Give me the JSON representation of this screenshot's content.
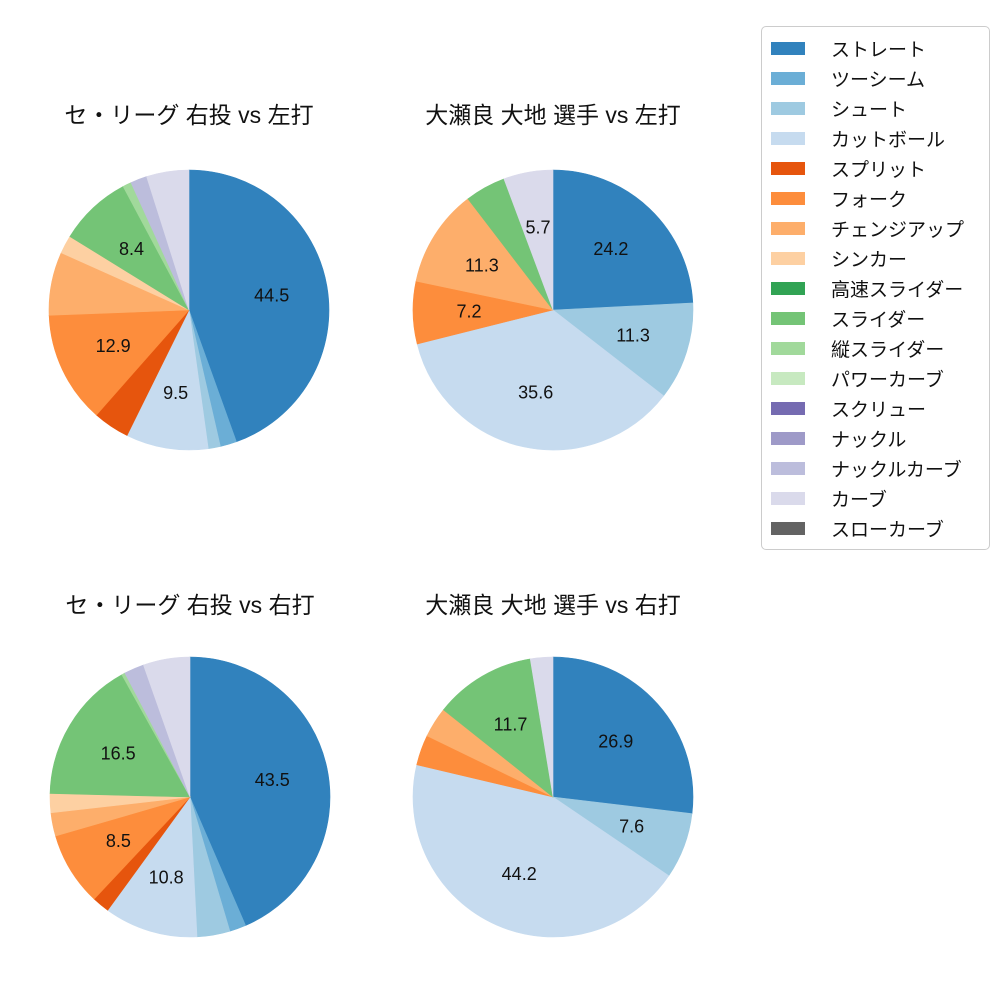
{
  "figure": {
    "background": "#ffffff"
  },
  "legend": {
    "position": "upper right",
    "border_color": "#cccccc",
    "items": [
      {
        "label": "ストレート",
        "color": "#3182bd"
      },
      {
        "label": "ツーシーム",
        "color": "#6baed6"
      },
      {
        "label": "シュート",
        "color": "#9ecae1"
      },
      {
        "label": "カットボール",
        "color": "#c6dbef"
      },
      {
        "label": "スプリット",
        "color": "#e6550d"
      },
      {
        "label": "フォーク",
        "color": "#fd8d3c"
      },
      {
        "label": "チェンジアップ",
        "color": "#fdae6b"
      },
      {
        "label": "シンカー",
        "color": "#fdd0a2"
      },
      {
        "label": "高速スライダー",
        "color": "#31a354"
      },
      {
        "label": "スライダー",
        "color": "#74c476"
      },
      {
        "label": "縦スライダー",
        "color": "#a1d99b"
      },
      {
        "label": "パワーカーブ",
        "color": "#c7e9c0"
      },
      {
        "label": "スクリュー",
        "color": "#756bb1"
      },
      {
        "label": "ナックル",
        "color": "#9e9ac8"
      },
      {
        "label": "ナックルカーブ",
        "color": "#bcbddc"
      },
      {
        "label": "カーブ",
        "color": "#dadaeb"
      },
      {
        "label": "スローカーブ",
        "color": "#636363"
      }
    ]
  },
  "chart_data": [
    {
      "type": "pie",
      "title": "セ・リーグ 右投 vs 左打",
      "start_angle_deg": 90,
      "direction": "clockwise",
      "pct_label_distance": 0.6,
      "slices": [
        {
          "label": "ストレート",
          "value": 44.5,
          "pct_label": "44.5",
          "color": "#3182bd"
        },
        {
          "label": "ツーシーム",
          "value": 1.9,
          "pct_label": "",
          "color": "#6baed6"
        },
        {
          "label": "シュート",
          "value": 1.4,
          "pct_label": "",
          "color": "#9ecae1"
        },
        {
          "label": "カットボール",
          "value": 9.5,
          "pct_label": "9.5",
          "color": "#c6dbef"
        },
        {
          "label": "スプリット",
          "value": 4.2,
          "pct_label": "",
          "color": "#e6550d"
        },
        {
          "label": "フォーク",
          "value": 12.9,
          "pct_label": "12.9",
          "color": "#fd8d3c"
        },
        {
          "label": "チェンジアップ",
          "value": 7.3,
          "pct_label": "",
          "color": "#fdae6b"
        },
        {
          "label": "シンカー",
          "value": 2.1,
          "pct_label": "",
          "color": "#fdd0a2"
        },
        {
          "label": "スライダー",
          "value": 8.4,
          "pct_label": "8.4",
          "color": "#74c476"
        },
        {
          "label": "縦スライダー",
          "value": 1.0,
          "pct_label": "",
          "color": "#a1d99b"
        },
        {
          "label": "ナックルカーブ",
          "value": 1.9,
          "pct_label": "",
          "color": "#bcbddc"
        },
        {
          "label": "カーブ",
          "value": 4.9,
          "pct_label": "",
          "color": "#dadaeb"
        }
      ]
    },
    {
      "type": "pie",
      "title": "大瀬良 大地 選手 vs 左打",
      "start_angle_deg": 90,
      "direction": "clockwise",
      "pct_label_distance": 0.6,
      "slices": [
        {
          "label": "ストレート",
          "value": 24.2,
          "pct_label": "24.2",
          "color": "#3182bd"
        },
        {
          "label": "シュート",
          "value": 11.3,
          "pct_label": "11.3",
          "color": "#9ecae1"
        },
        {
          "label": "カットボール",
          "value": 35.6,
          "pct_label": "35.6",
          "color": "#c6dbef"
        },
        {
          "label": "フォーク",
          "value": 7.2,
          "pct_label": "7.2",
          "color": "#fd8d3c"
        },
        {
          "label": "チェンジアップ",
          "value": 11.3,
          "pct_label": "11.3",
          "color": "#fdae6b"
        },
        {
          "label": "スライダー",
          "value": 4.7,
          "pct_label": "",
          "color": "#74c476"
        },
        {
          "label": "カーブ",
          "value": 5.7,
          "pct_label": "5.7",
          "color": "#dadaeb"
        }
      ]
    },
    {
      "type": "pie",
      "title": "セ・リーグ 右投 vs 右打",
      "start_angle_deg": 90,
      "direction": "clockwise",
      "pct_label_distance": 0.6,
      "slices": [
        {
          "label": "ストレート",
          "value": 43.5,
          "pct_label": "43.5",
          "color": "#3182bd"
        },
        {
          "label": "ツーシーム",
          "value": 1.9,
          "pct_label": "",
          "color": "#6baed6"
        },
        {
          "label": "シュート",
          "value": 3.8,
          "pct_label": "",
          "color": "#9ecae1"
        },
        {
          "label": "カットボール",
          "value": 10.8,
          "pct_label": "10.8",
          "color": "#c6dbef"
        },
        {
          "label": "スプリット",
          "value": 2.0,
          "pct_label": "",
          "color": "#e6550d"
        },
        {
          "label": "フォーク",
          "value": 8.5,
          "pct_label": "8.5",
          "color": "#fd8d3c"
        },
        {
          "label": "チェンジアップ",
          "value": 2.7,
          "pct_label": "",
          "color": "#fdae6b"
        },
        {
          "label": "シンカー",
          "value": 2.2,
          "pct_label": "",
          "color": "#fdd0a2"
        },
        {
          "label": "スライダー",
          "value": 16.5,
          "pct_label": "16.5",
          "color": "#74c476"
        },
        {
          "label": "縦スライダー",
          "value": 0.4,
          "pct_label": "",
          "color": "#a1d99b"
        },
        {
          "label": "ナックルカーブ",
          "value": 2.3,
          "pct_label": "",
          "color": "#bcbddc"
        },
        {
          "label": "カーブ",
          "value": 5.4,
          "pct_label": "",
          "color": "#dadaeb"
        }
      ]
    },
    {
      "type": "pie",
      "title": "大瀬良 大地 選手 vs 右打",
      "start_angle_deg": 90,
      "direction": "clockwise",
      "pct_label_distance": 0.6,
      "slices": [
        {
          "label": "ストレート",
          "value": 26.9,
          "pct_label": "26.9",
          "color": "#3182bd"
        },
        {
          "label": "シュート",
          "value": 7.6,
          "pct_label": "7.6",
          "color": "#9ecae1"
        },
        {
          "label": "カットボール",
          "value": 44.2,
          "pct_label": "44.2",
          "color": "#c6dbef"
        },
        {
          "label": "フォーク",
          "value": 3.5,
          "pct_label": "",
          "color": "#fd8d3c"
        },
        {
          "label": "チェンジアップ",
          "value": 3.5,
          "pct_label": "",
          "color": "#fdae6b"
        },
        {
          "label": "スライダー",
          "value": 11.7,
          "pct_label": "11.7",
          "color": "#74c476"
        },
        {
          "label": "カーブ",
          "value": 2.6,
          "pct_label": "",
          "color": "#dadaeb"
        }
      ]
    }
  ]
}
